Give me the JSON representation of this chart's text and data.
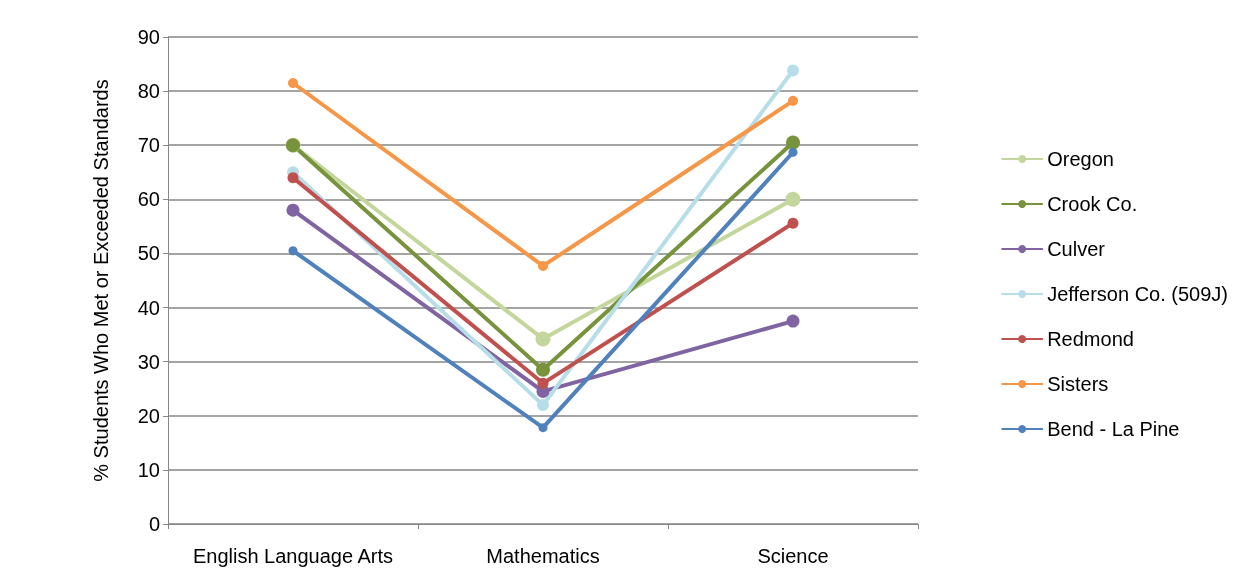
{
  "chart_data": {
    "type": "line",
    "ylabel": "% Students Who Met or Exceeded Standards",
    "categories": [
      "English Language Arts",
      "Mathematics",
      "Science"
    ],
    "series": [
      {
        "name": "Oregon",
        "color": "#c3d69b",
        "values": [
          70,
          34.2,
          60
        ]
      },
      {
        "name": "Crook Co.",
        "color": "#77933c",
        "values": [
          70,
          28.5,
          70.5
        ]
      },
      {
        "name": "Culver",
        "color": "#8064a2",
        "values": [
          58,
          24.5,
          37.5
        ]
      },
      {
        "name": "Jefferson Co. (509J)",
        "color": "#b7dee8",
        "values": [
          65,
          22,
          83.8
        ]
      },
      {
        "name": "Redmond",
        "color": "#c0504d",
        "values": [
          64,
          26,
          55.6
        ]
      },
      {
        "name": "Sisters",
        "color": "#f79646",
        "values": [
          81.5,
          47.7,
          78.2
        ]
      },
      {
        "name": "Bend - La Pine",
        "color": "#4f81bd",
        "values": [
          50.5,
          17.8,
          68.7
        ]
      }
    ],
    "ylim": [
      0,
      90
    ],
    "yticks": [
      0,
      10,
      20,
      30,
      40,
      50,
      60,
      70,
      80,
      90
    ],
    "grid": "y",
    "legend": "right",
    "marker": "circle",
    "line_style": "solid"
  }
}
